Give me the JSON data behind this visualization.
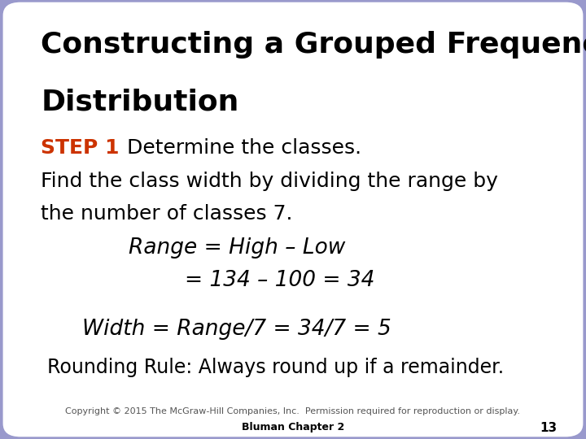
{
  "title_line1": "Constructing a Grouped Frequency",
  "title_line2": "Distribution",
  "step_label": "STEP 1",
  "step_color": "#CC3300",
  "step_text": "  Determine the classes.",
  "body_line1": "Find the class width by dividing the range by",
  "body_line2": "the number of classes 7.",
  "italic_line1": "Range = High – Low",
  "italic_line2": "= 134 – 100 = 34",
  "italic_line3": "Width = Range/7 = 34/7 = 5",
  "rounding_rule": "Rounding Rule: Always round up if a remainder.",
  "copyright": "Copyright © 2015 The McGraw-Hill Companies, Inc.  Permission required for reproduction or display.",
  "chapter": "Bluman Chapter 2",
  "page_num": "13",
  "bg_outer": "#9999CC",
  "bg_inner": "#FFFFFF",
  "text_color": "#000000",
  "step_color_text": "#CC3300",
  "title_fontsize": 26,
  "body_fontsize": 18,
  "italic_fontsize": 19,
  "small_fontsize": 8,
  "page_fontsize": 11
}
